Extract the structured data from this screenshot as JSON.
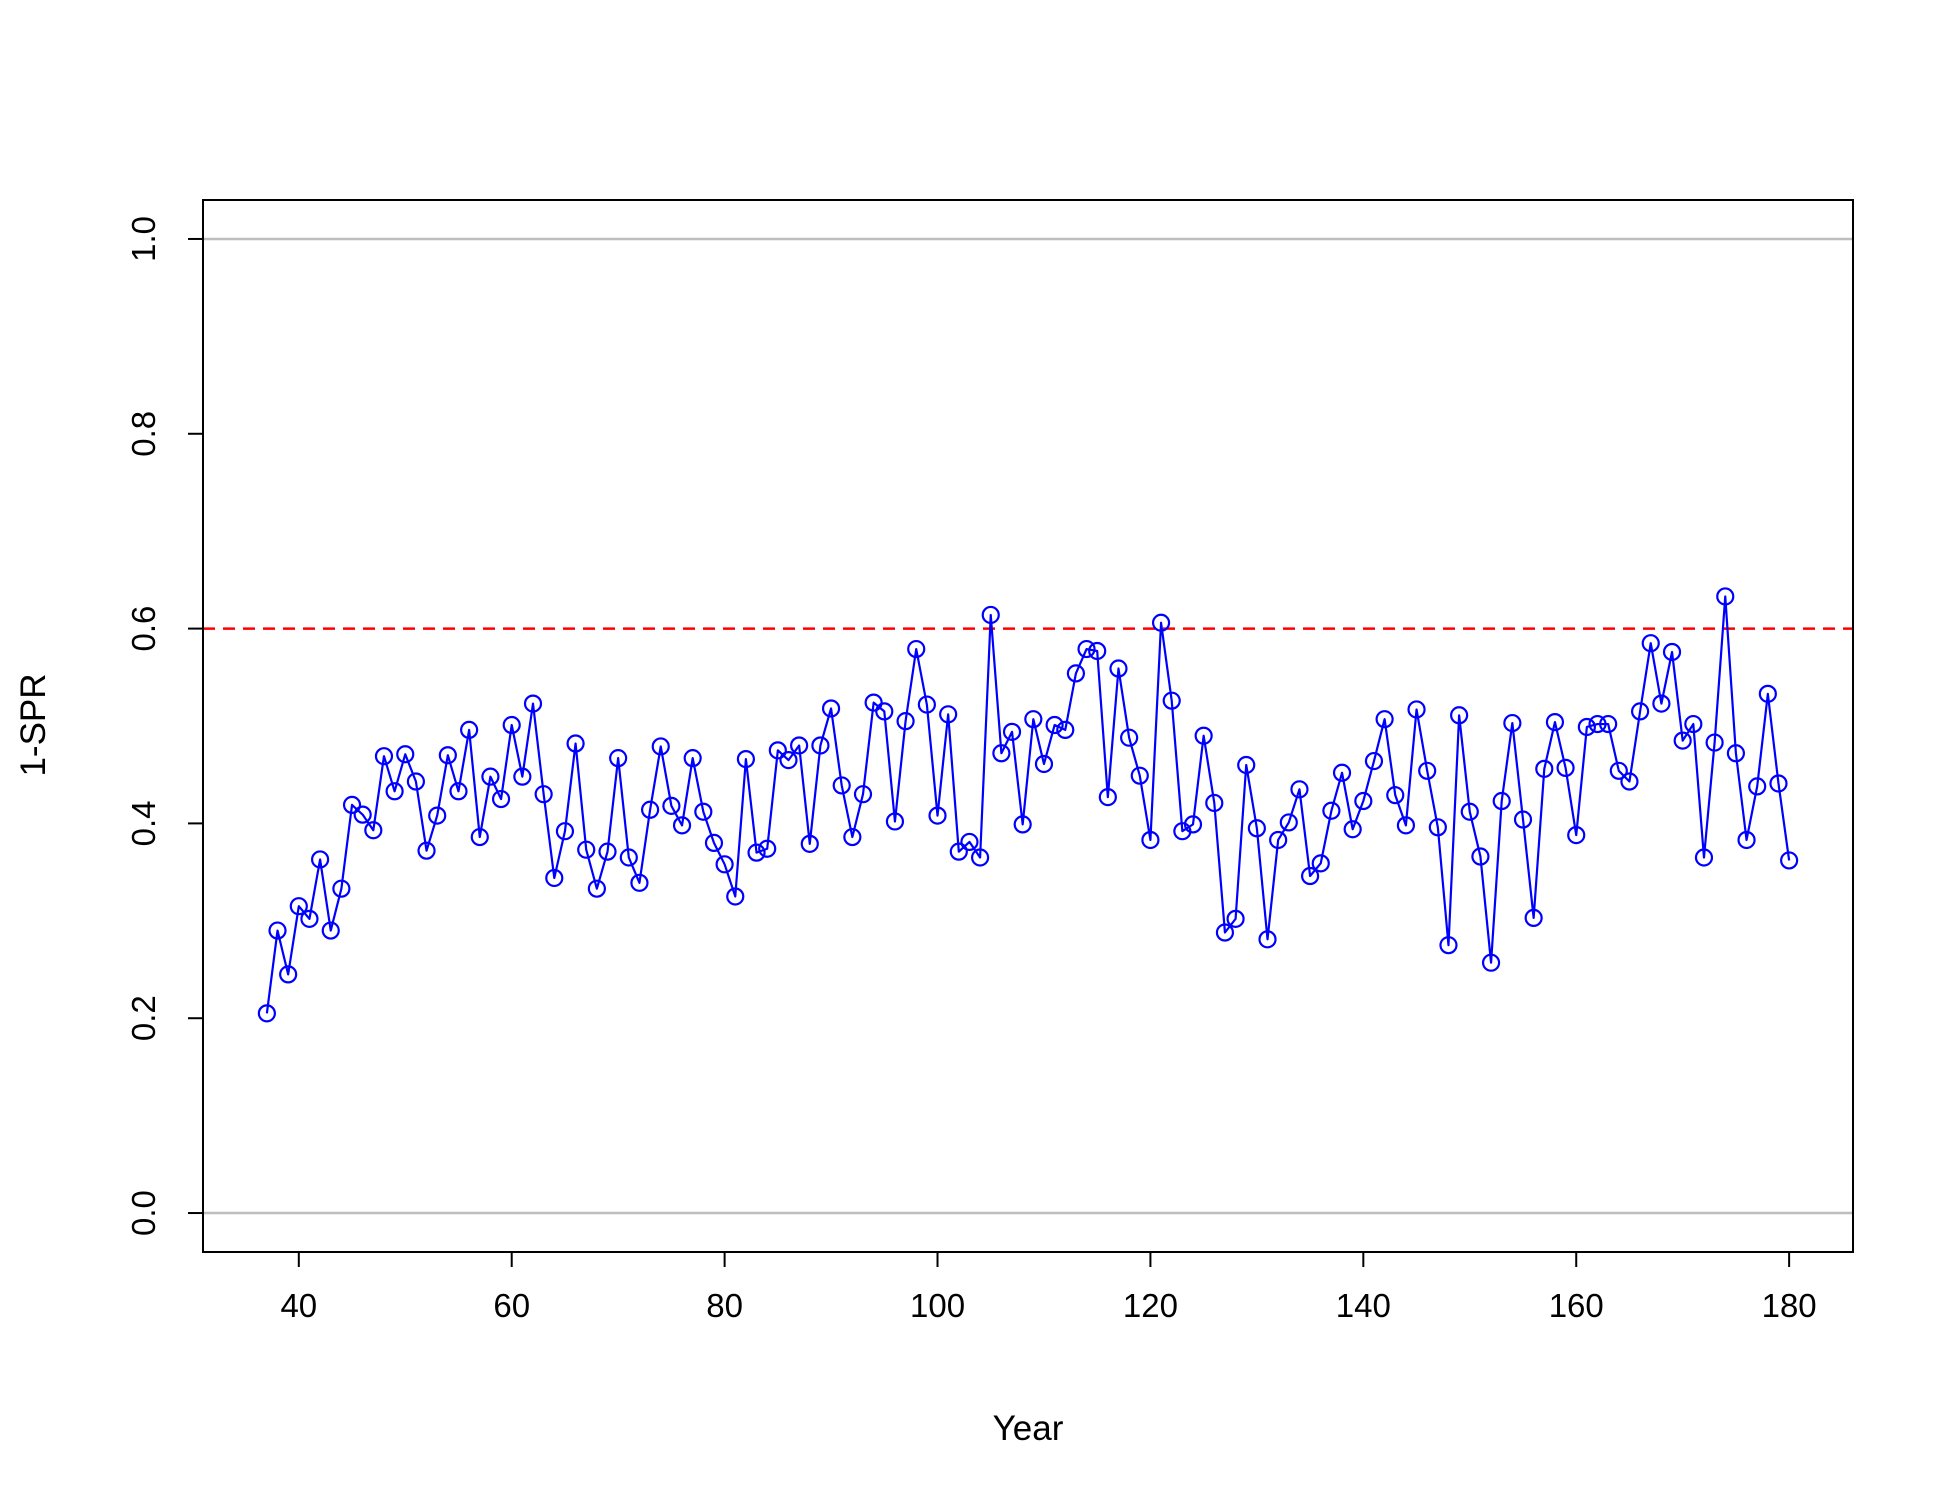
{
  "chart_data": {
    "type": "line",
    "xlabel": "Year",
    "ylabel": "1-SPR",
    "xlim": [
      31,
      186
    ],
    "ylim": [
      -0.04,
      1.04
    ],
    "x_ticks": [
      40,
      60,
      80,
      100,
      120,
      140,
      160,
      180
    ],
    "y_ticks": [
      0.0,
      0.2,
      0.4,
      0.6,
      0.8,
      1.0
    ],
    "x_tick_labels": [
      "40",
      "60",
      "80",
      "100",
      "120",
      "140",
      "160",
      "180"
    ],
    "y_tick_labels": [
      "0.0",
      "0.2",
      "0.4",
      "0.6",
      "0.8",
      "1.0"
    ],
    "reference_lines": [
      {
        "y": 0.0,
        "color": "#bebebe",
        "style": "solid"
      },
      {
        "y": 1.0,
        "color": "#bebebe",
        "style": "solid"
      },
      {
        "y": 0.6,
        "color": "#ff0000",
        "style": "dashed"
      }
    ],
    "grid": false,
    "series": [
      {
        "color": "#0000ff",
        "marker": "open-circle",
        "x": [
          37,
          38,
          39,
          40,
          41,
          42,
          43,
          44,
          45,
          46,
          47,
          48,
          49,
          50,
          51,
          52,
          53,
          54,
          55,
          56,
          57,
          58,
          59,
          60,
          61,
          62,
          63,
          64,
          65,
          66,
          67,
          68,
          69,
          70,
          71,
          72,
          73,
          74,
          75,
          76,
          77,
          78,
          79,
          80,
          81,
          82,
          83,
          84,
          85,
          86,
          87,
          88,
          89,
          90,
          91,
          92,
          93,
          94,
          95,
          96,
          97,
          98,
          99,
          100,
          101,
          102,
          103,
          104,
          105,
          106,
          107,
          108,
          109,
          110,
          111,
          112,
          113,
          114,
          115,
          116,
          117,
          118,
          119,
          120,
          121,
          122,
          123,
          124,
          125,
          126,
          127,
          128,
          129,
          130,
          131,
          132,
          133,
          134,
          135,
          136,
          137,
          138,
          139,
          140,
          141,
          142,
          143,
          144,
          145,
          146,
          147,
          148,
          149,
          150,
          151,
          152,
          153,
          154,
          155,
          156,
          157,
          158,
          159,
          160,
          161,
          162,
          163,
          164,
          165,
          166,
          167,
          168,
          169,
          170,
          171,
          172,
          173,
          174,
          175,
          176,
          177,
          178,
          179,
          180
        ],
        "values": [
          0.205,
          0.29,
          0.245,
          0.315,
          0.302,
          0.363,
          0.29,
          0.333,
          0.419,
          0.409,
          0.393,
          0.469,
          0.433,
          0.471,
          0.443,
          0.372,
          0.408,
          0.47,
          0.433,
          0.496,
          0.386,
          0.448,
          0.425,
          0.501,
          0.448,
          0.523,
          0.43,
          0.344,
          0.392,
          0.482,
          0.373,
          0.333,
          0.371,
          0.467,
          0.365,
          0.339,
          0.414,
          0.479,
          0.418,
          0.398,
          0.467,
          0.412,
          0.38,
          0.358,
          0.325,
          0.466,
          0.37,
          0.374,
          0.475,
          0.465,
          0.48,
          0.379,
          0.48,
          0.518,
          0.439,
          0.386,
          0.43,
          0.524,
          0.515,
          0.402,
          0.505,
          0.579,
          0.522,
          0.408,
          0.512,
          0.371,
          0.381,
          0.365,
          0.614,
          0.472,
          0.494,
          0.399,
          0.507,
          0.461,
          0.501,
          0.496,
          0.554,
          0.579,
          0.577,
          0.427,
          0.559,
          0.488,
          0.449,
          0.383,
          0.606,
          0.526,
          0.392,
          0.399,
          0.49,
          0.421,
          0.288,
          0.302,
          0.46,
          0.395,
          0.281,
          0.383,
          0.401,
          0.435,
          0.346,
          0.359,
          0.413,
          0.452,
          0.394,
          0.423,
          0.464,
          0.507,
          0.429,
          0.398,
          0.517,
          0.454,
          0.396,
          0.275,
          0.511,
          0.412,
          0.366,
          0.257,
          0.423,
          0.503,
          0.404,
          0.303,
          0.456,
          0.504,
          0.457,
          0.388,
          0.499,
          0.502,
          0.502,
          0.454,
          0.443,
          0.515,
          0.585,
          0.523,
          0.576,
          0.485,
          0.502,
          0.365,
          0.483,
          0.633,
          0.472,
          0.383,
          0.438,
          0.533,
          0.441,
          0.362
        ]
      }
    ]
  }
}
